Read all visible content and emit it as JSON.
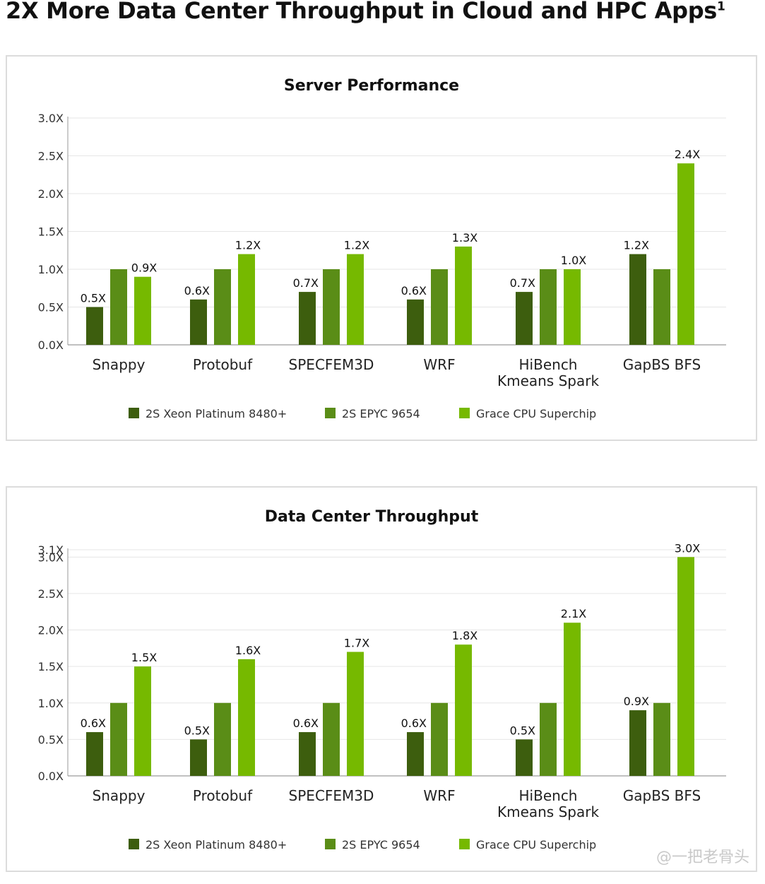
{
  "page": {
    "title": "2X More Data Center Throughput in Cloud and HPC Apps",
    "title_sup": "1",
    "watermark": "@一把老骨头"
  },
  "colors": {
    "xeon": "#3d5e0e",
    "epyc": "#5a8d17",
    "grace": "#76b900",
    "grid": "#e6e6e6",
    "axis": "#9a9a9a"
  },
  "chart_data": [
    {
      "type": "bar",
      "title": "Server Performance",
      "xlabel": "",
      "ylabel": "",
      "ylim": [
        0,
        3.0
      ],
      "yticks": [
        "0.0X",
        "0.5X",
        "1.0X",
        "1.5X",
        "2.0X",
        "2.5X",
        "3.0X"
      ],
      "ytick_values": [
        0,
        0.5,
        1.0,
        1.5,
        2.0,
        2.5,
        3.0
      ],
      "grid": true,
      "legend_position": "bottom",
      "categories": [
        [
          "Snappy"
        ],
        [
          "Protobuf"
        ],
        [
          "SPECFEM3D"
        ],
        [
          "WRF"
        ],
        [
          "HiBench",
          "Kmeans Spark"
        ],
        [
          "GapBS BFS"
        ]
      ],
      "series": [
        {
          "name": "2S Xeon Platinum 8480+",
          "color": "#3d5e0e",
          "values": [
            0.5,
            0.6,
            0.7,
            0.6,
            0.7,
            1.2
          ],
          "labels": [
            "0.5X",
            "0.6X",
            "0.7X",
            "0.6X",
            "0.7X",
            "1.2X"
          ]
        },
        {
          "name": "2S EPYC 9654",
          "color": "#5a8d17",
          "values": [
            1.0,
            1.0,
            1.0,
            1.0,
            1.0,
            1.0
          ],
          "labels": [
            "",
            "",
            "",
            "",
            "",
            ""
          ]
        },
        {
          "name": "Grace CPU Superchip",
          "color": "#76b900",
          "values": [
            0.9,
            1.2,
            1.2,
            1.3,
            1.0,
            2.4
          ],
          "labels": [
            "0.9X",
            "1.2X",
            "1.2X",
            "1.3X",
            "1.0X",
            "2.4X"
          ]
        }
      ]
    },
    {
      "type": "bar",
      "title": "Data Center Throughput",
      "xlabel": "",
      "ylabel": "",
      "ylim": [
        0,
        3.1
      ],
      "yticks": [
        "0.0X",
        "0.5X",
        "1.0X",
        "1.5X",
        "2.0X",
        "2.5X",
        "3.0X",
        "3.1X"
      ],
      "ytick_values": [
        0,
        0.5,
        1.0,
        1.5,
        2.0,
        2.5,
        3.0,
        3.1
      ],
      "grid": true,
      "legend_position": "bottom",
      "categories": [
        [
          "Snappy"
        ],
        [
          "Protobuf"
        ],
        [
          "SPECFEM3D"
        ],
        [
          "WRF"
        ],
        [
          "HiBench",
          "Kmeans Spark"
        ],
        [
          "GapBS BFS"
        ]
      ],
      "series": [
        {
          "name": "2S Xeon Platinum 8480+",
          "color": "#3d5e0e",
          "values": [
            0.6,
            0.5,
            0.6,
            0.6,
            0.5,
            0.9
          ],
          "labels": [
            "0.6X",
            "0.5X",
            "0.6X",
            "0.6X",
            "0.5X",
            "0.9X"
          ]
        },
        {
          "name": "2S EPYC 9654",
          "color": "#5a8d17",
          "values": [
            1.0,
            1.0,
            1.0,
            1.0,
            1.0,
            1.0
          ],
          "labels": [
            "",
            "",
            "",
            "",
            "",
            ""
          ]
        },
        {
          "name": "Grace CPU Superchip",
          "color": "#76b900",
          "values": [
            1.5,
            1.6,
            1.7,
            1.8,
            2.1,
            3.0
          ],
          "labels": [
            "1.5X",
            "1.6X",
            "1.7X",
            "1.8X",
            "2.1X",
            "3.0X"
          ]
        }
      ]
    }
  ]
}
